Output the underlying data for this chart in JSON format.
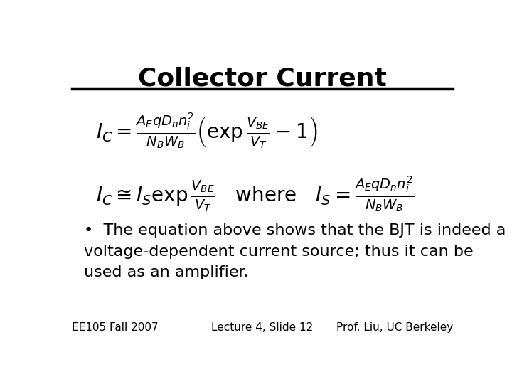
{
  "title": "Collector Current",
  "title_fontsize": 26,
  "title_fontweight": "bold",
  "line_color": "#000000",
  "bg_color": "#ffffff",
  "eq1": "I_C = \\frac{A_E q D_n n_i^2}{N_B W_B} \\left( \\exp\\frac{V_{BE}}{V_T} - 1 \\right)",
  "eq2": "I_C \\cong I_S \\exp\\frac{V_{BE}}{V_T} \\quad \\text{where} \\quad I_S = \\frac{A_E q D_n n_i^2}{N_B W_B}",
  "bullet_text": "The equation above shows that the BJT is indeed a\nvoltage-dependent current source; thus it can be\nused as an amplifier.",
  "footer_left": "EE105 Fall 2007",
  "footer_center": "Lecture 4, Slide 12",
  "footer_right": "Prof. Liu, UC Berkeley",
  "footer_fontsize": 11,
  "eq_fontsize": 20,
  "bullet_fontsize": 16
}
